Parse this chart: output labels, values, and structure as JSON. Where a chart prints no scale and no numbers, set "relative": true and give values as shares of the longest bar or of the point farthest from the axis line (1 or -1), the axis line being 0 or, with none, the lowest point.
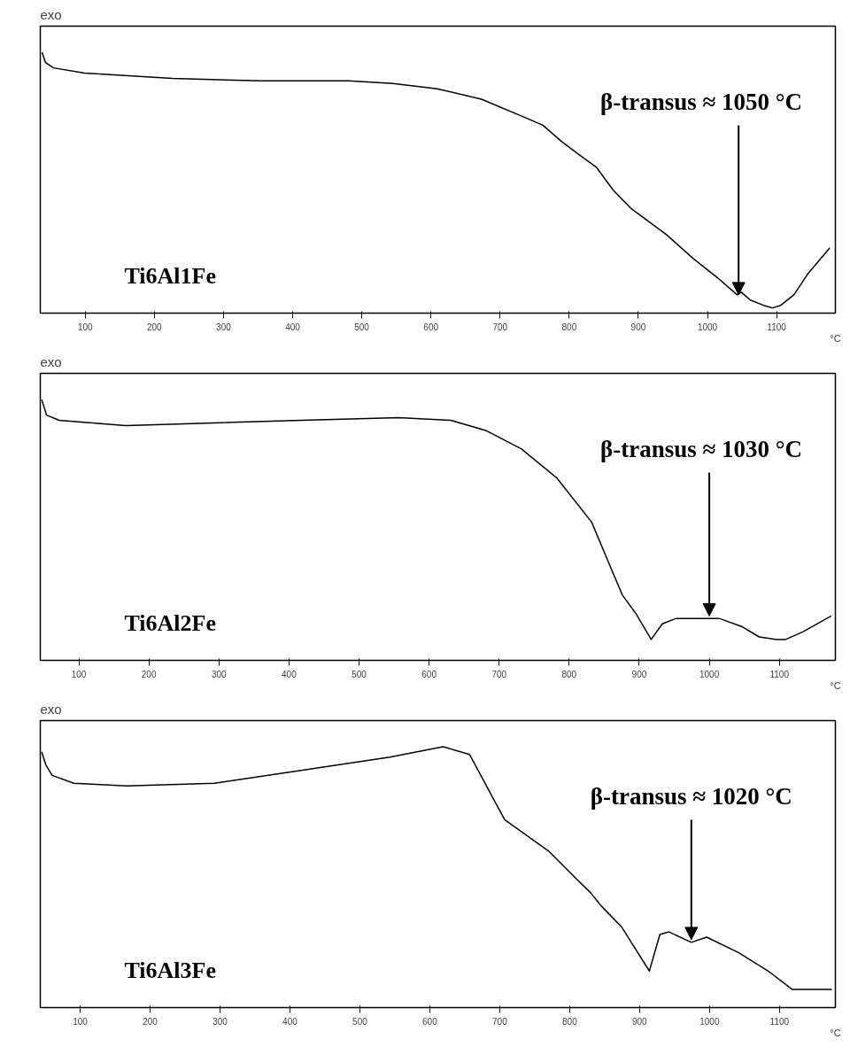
{
  "chart_data": [
    {
      "type": "line",
      "ylabel": "exo",
      "relative": true,
      "xlim": [
        35,
        1185
      ],
      "xticks": [
        100,
        200,
        300,
        400,
        500,
        600,
        700,
        800,
        900,
        1000,
        1100
      ],
      "xlabel": "°C",
      "series": [
        {
          "color": "#000000",
          "x": [
            37.5,
            42.6,
            54,
            99,
            226,
            354,
            481,
            545,
            609,
            673,
            736,
            762,
            788,
            813,
            839,
            864,
            890,
            941,
            979,
            1017,
            1043,
            1049,
            1062,
            1081,
            1094,
            1106,
            1125,
            1145,
            1164,
            1177
          ],
          "values": [
            1.0,
            0.96,
            0.94,
            0.92,
            0.9,
            0.89,
            0.89,
            0.88,
            0.86,
            0.82,
            0.75,
            0.72,
            0.66,
            0.61,
            0.56,
            0.47,
            0.4,
            0.3,
            0.21,
            0.13,
            0.07,
            0.08,
            0.05,
            0.03,
            0.02,
            0.03,
            0.07,
            0.15,
            0.21,
            0.25
          ]
        }
      ],
      "annotations": [
        {
          "text": "β-transus ≈ 1050 °C",
          "x": 1045,
          "y": 0.06
        },
        "Ti6Al1Fe"
      ]
    },
    {
      "type": "line",
      "ylabel": "exo",
      "relative": true,
      "xlim": [
        45,
        1180
      ],
      "xticks": [
        100,
        200,
        300,
        400,
        500,
        600,
        700,
        800,
        900,
        1000,
        1100
      ],
      "xlabel": "°C",
      "series": [
        {
          "color": "#000000",
          "x": [
            47,
            54,
            72,
            167,
            292,
            418,
            556,
            631,
            682,
            732,
            782,
            832,
            857,
            876,
            895,
            917,
            933,
            952,
            983,
            1015,
            1046,
            1071,
            1096,
            1109,
            1134,
            1174
          ],
          "values": [
            1.0,
            0.94,
            0.92,
            0.9,
            0.91,
            0.92,
            0.93,
            0.92,
            0.88,
            0.81,
            0.7,
            0.53,
            0.37,
            0.25,
            0.18,
            0.08,
            0.14,
            0.16,
            0.16,
            0.16,
            0.13,
            0.09,
            0.08,
            0.08,
            0.11,
            0.17
          ]
        }
      ],
      "annotations": [
        {
          "text": "β-transus ≈ 1030 °C",
          "x": 1000,
          "y": 0.16
        },
        "Ti6Al2Fe"
      ]
    },
    {
      "type": "line",
      "ylabel": "exo",
      "relative": true,
      "xlim": [
        43,
        1180
      ],
      "xticks": [
        100,
        200,
        300,
        400,
        500,
        600,
        700,
        800,
        900,
        1000,
        1100
      ],
      "xlabel": "°C",
      "series": [
        {
          "color": "#000000",
          "x": [
            45,
            51,
            60,
            91,
            167,
            292,
            418,
            543,
            619,
            657,
            707,
            770,
            811,
            830,
            845,
            874,
            914,
            929,
            942,
            974,
            996,
            1042,
            1084,
            1118,
            1138,
            1175
          ],
          "values": [
            0.98,
            0.93,
            0.89,
            0.86,
            0.85,
            0.86,
            0.91,
            0.96,
            1.0,
            0.97,
            0.72,
            0.6,
            0.49,
            0.44,
            0.39,
            0.31,
            0.14,
            0.28,
            0.29,
            0.25,
            0.27,
            0.21,
            0.14,
            0.07,
            0.07,
            0.07
          ]
        }
      ],
      "annotations": [
        {
          "text": "β-transus ≈ 1020 °C",
          "x": 974,
          "y": 0.25
        },
        "Ti6Al3Fe"
      ]
    }
  ]
}
